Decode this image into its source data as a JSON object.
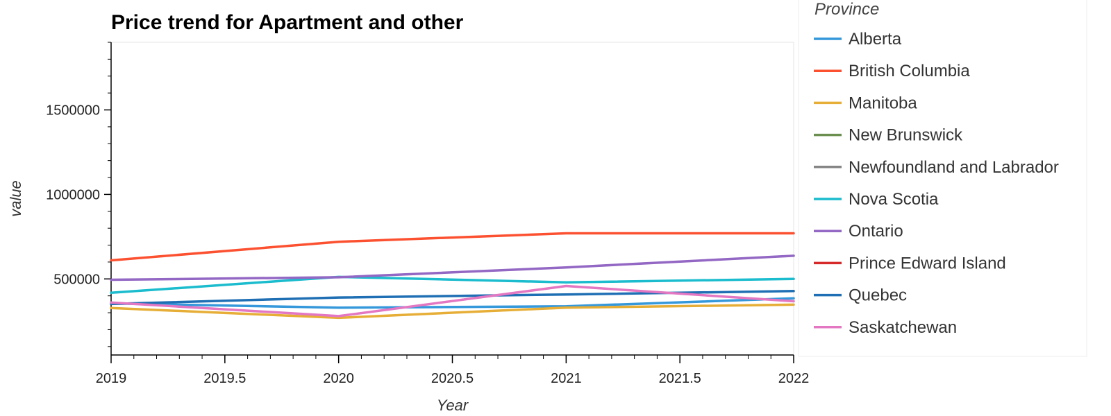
{
  "chart_data": {
    "type": "line",
    "title": "Price trend for Apartment and other",
    "xlabel": "Year",
    "ylabel": "value",
    "xlim": [
      2019,
      2022
    ],
    "ylim": [
      50000,
      1900000
    ],
    "x_ticks": [
      "2019",
      "2019.5",
      "2020",
      "2020.5",
      "2021",
      "2021.5",
      "2022"
    ],
    "y_ticks": [
      "500000",
      "1000000",
      "1500000"
    ],
    "x": [
      2019,
      2020,
      2021,
      2022
    ],
    "legend_title": "Province",
    "legend_position": "right",
    "grid": false,
    "series": [
      {
        "name": "Alberta",
        "color": "#3498db",
        "values": [
          355000,
          330000,
          338000,
          385000
        ]
      },
      {
        "name": "British Columbia",
        "color": "#fc5131",
        "values": [
          610000,
          720000,
          770000,
          770000
        ]
      },
      {
        "name": "Manitoba",
        "color": "#e6ae36",
        "values": [
          328000,
          270000,
          330000,
          348000
        ]
      },
      {
        "name": "New Brunswick",
        "color": "#6a8f4f",
        "values": [
          null,
          null,
          null,
          null
        ]
      },
      {
        "name": "Newfoundland and Labrador",
        "color": "#858585",
        "values": [
          null,
          null,
          null,
          null
        ]
      },
      {
        "name": "Nova Scotia",
        "color": "#1abccd",
        "values": [
          418000,
          512000,
          480000,
          500000
        ]
      },
      {
        "name": "Ontario",
        "color": "#9367c4",
        "values": [
          495000,
          510000,
          568000,
          637000
        ]
      },
      {
        "name": "Prince Edward Island",
        "color": "#d5292a",
        "values": [
          null,
          null,
          null,
          null
        ]
      },
      {
        "name": "Quebec",
        "color": "#1f6fb4",
        "values": [
          352000,
          390000,
          408000,
          428000
        ]
      },
      {
        "name": "Saskatchewan",
        "color": "#e377c2",
        "values": [
          360000,
          280000,
          458000,
          368000
        ]
      }
    ]
  }
}
